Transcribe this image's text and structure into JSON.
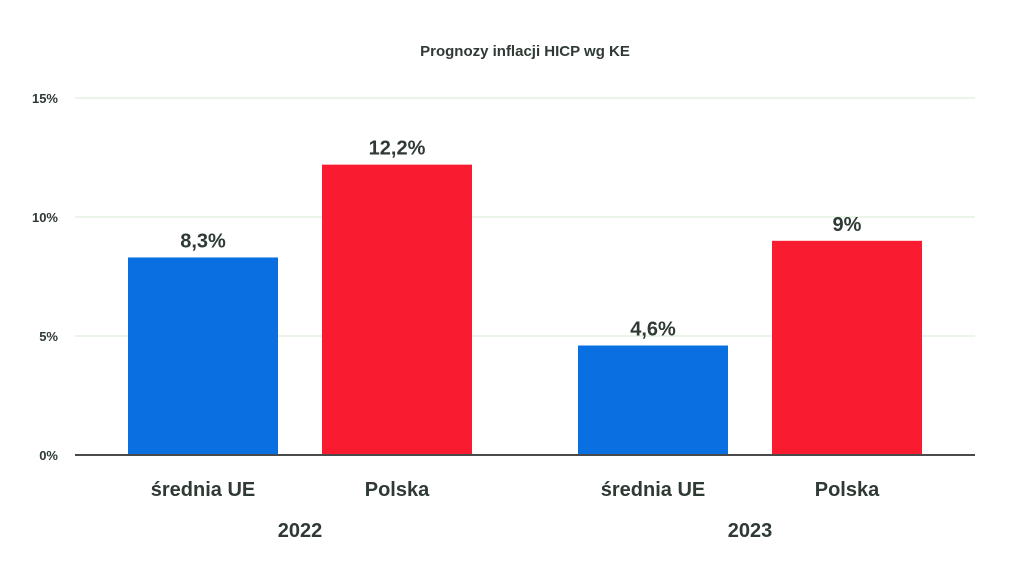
{
  "chart_data": {
    "type": "bar",
    "title": "Prognozy inflacji HICP wg KE",
    "xlabel": "",
    "ylabel": "",
    "ylim": [
      0,
      15
    ],
    "yticks": [
      {
        "value": 0,
        "label": "0%"
      },
      {
        "value": 5,
        "label": "5%"
      },
      {
        "value": 10,
        "label": "10%"
      },
      {
        "value": 15,
        "label": "15%"
      }
    ],
    "grid": true,
    "groups": [
      {
        "label": "2022",
        "bars": [
          {
            "category": "średnia UE",
            "value": 8.3,
            "label": "8,3%",
            "color": "#0a6fe0"
          },
          {
            "category": "Polska",
            "value": 12.2,
            "label": "12,2%",
            "color": "#f91c30"
          }
        ]
      },
      {
        "label": "2023",
        "bars": [
          {
            "category": "średnia UE",
            "value": 4.6,
            "label": "4,6%",
            "color": "#0a6fe0"
          },
          {
            "category": "Polska",
            "value": 9,
            "label": "9%",
            "color": "#f91c30"
          }
        ]
      }
    ],
    "colors": {
      "grid": "#e3f1e1",
      "axis": "#4a4a4a",
      "text": "#2f3a34"
    }
  }
}
